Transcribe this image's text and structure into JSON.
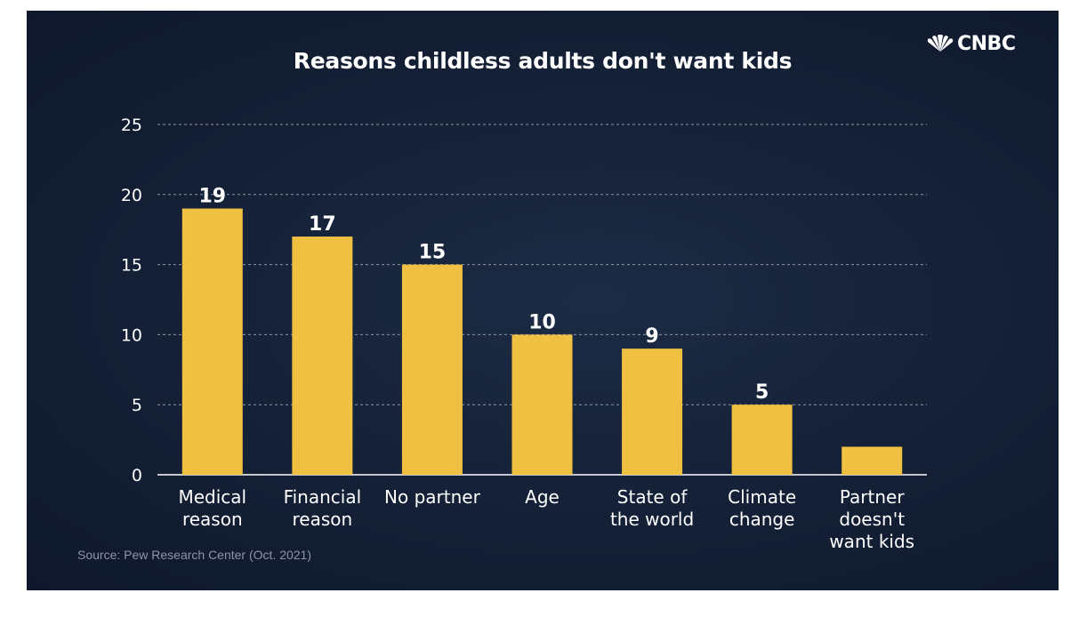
{
  "brand": {
    "logo_text": "CNBC",
    "logo_icon": "peacock-icon"
  },
  "source": "Source: Pew Research Center (Oct. 2021)",
  "colors": {
    "bar": "#f0c043",
    "background": "#142036",
    "grid": "#8f97a6",
    "text": "#ffffff"
  },
  "chart_data": {
    "type": "bar",
    "title": "Reasons childless adults don't want kids",
    "xlabel": "",
    "ylabel": "",
    "ylim": [
      0,
      25
    ],
    "yticks": [
      0,
      5,
      10,
      15,
      20,
      25
    ],
    "grid": true,
    "categories": [
      [
        "Medical",
        "reason"
      ],
      [
        "Financial",
        "reason"
      ],
      [
        "No partner"
      ],
      [
        "Age"
      ],
      [
        "State of",
        "the world"
      ],
      [
        "Climate",
        "change"
      ],
      [
        "Partner",
        "doesn't",
        "want kids"
      ]
    ],
    "values": [
      19,
      17,
      15,
      10,
      9,
      5,
      2
    ],
    "data_labels": [
      "19",
      "17",
      "15",
      "10",
      "9",
      "5",
      ""
    ]
  }
}
